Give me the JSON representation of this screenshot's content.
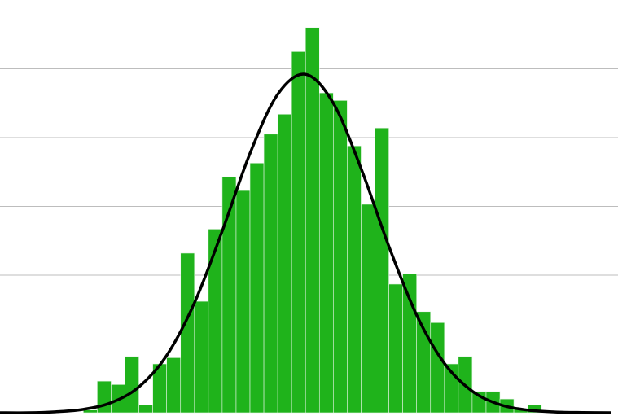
{
  "chart_data": {
    "type": "histogram",
    "bins": [
      0,
      1,
      2,
      3,
      4,
      5,
      6,
      7,
      8,
      9,
      10,
      11,
      12,
      13,
      14,
      15,
      16,
      17,
      18,
      19,
      20,
      21,
      22,
      23,
      24,
      25,
      26,
      27,
      28,
      29,
      30,
      31,
      32,
      33
    ],
    "values": [
      0.4,
      4.6,
      4.1,
      8.2,
      1.1,
      7.1,
      8.0,
      23.2,
      16.2,
      26.7,
      34.3,
      32.3,
      36.3,
      40.5,
      43.4,
      52.5,
      56.0,
      46.5,
      45.4,
      38.8,
      30.3,
      41.4,
      18.7,
      20.2,
      14.7,
      13.1,
      7.1,
      8.2,
      3.1,
      3.1,
      2.0,
      0.6,
      1.1
    ],
    "color": "#1fb31b",
    "curve": {
      "color": "#000000",
      "x": [
        -6,
        -4,
        -2,
        0,
        2,
        4,
        6,
        8,
        10,
        12,
        14,
        16,
        18,
        20,
        22,
        24,
        26,
        28,
        30,
        32,
        34,
        36,
        38
      ],
      "values": [
        0.0,
        0.0,
        0.14,
        0.49,
        1.46,
        3.75,
        8.32,
        15.97,
        26.4,
        37.7,
        46.3,
        49.2,
        45.0,
        35.5,
        24.2,
        14.2,
        7.18,
        3.14,
        1.18,
        0.38,
        0.11,
        0.03,
        0.0
      ]
    },
    "xlim": [
      -6,
      38.5
    ],
    "ylim": [
      0,
      60
    ],
    "yticks": [
      10,
      20,
      30,
      40,
      50
    ],
    "grid": true
  }
}
